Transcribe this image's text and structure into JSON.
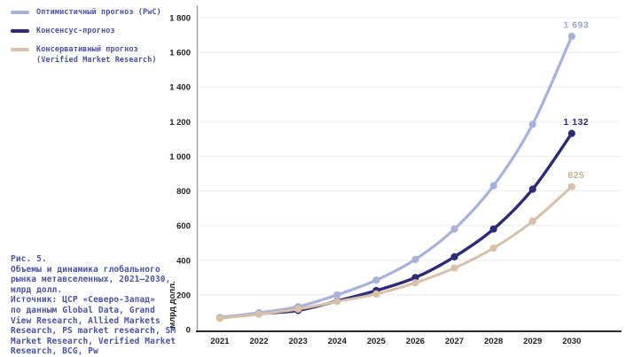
{
  "colors": {
    "text_accent": "#4A53A7",
    "gridline": "#ECECEC",
    "y_axis_line": "#9C9C9C",
    "x_axis_line": "#2B2B2B",
    "tick_label": "#212121"
  },
  "legend": {
    "items": [
      {
        "label": "Оптимистичный прогноз (PwC)"
      },
      {
        "label": "Консенсус-прогноз"
      },
      {
        "label": "Консервативный прогноз\n(Verified Market Research)"
      }
    ]
  },
  "caption": {
    "text": "Рис. 5.\nОбъемы и динамика глобального\nрынка метавселенных, 2021–2030,\nмлрд долл.\nИсточник: ЦСР «Северо-Запад»\nпо данным Global Data, Grand\nView Research, Allied Markets\nResearch, PS market research, SM\nMarket Research, Verified Market\nResearch, BCG, Pw"
  },
  "chart_data": {
    "type": "line",
    "title": "Объемы и динамика глобального рынка метавселенных, 2021–2030, млрд долл.",
    "xlabel": "",
    "ylabel": "млрд долл.",
    "ylim": [
      0,
      1800
    ],
    "grid": "horizontal",
    "legend_position": "top-left",
    "categories": [
      "2021",
      "2022",
      "2023",
      "2024",
      "2025",
      "2026",
      "2027",
      "2028",
      "2029",
      "2030"
    ],
    "y_ticks": [
      0,
      200,
      400,
      600,
      800,
      1000,
      1200,
      1400,
      1600,
      1800
    ],
    "y_tick_labels": [
      "0",
      "200",
      "400",
      "600",
      "800",
      "1 000",
      "1 200",
      "1 400",
      "1 600",
      "1 800"
    ],
    "draw_order": [
      1,
      0,
      2
    ],
    "series": [
      {
        "id": "optimistic",
        "name": "Оптимистичный прогноз (PwC)",
        "color": "#A6B1DC",
        "label_color": "#9CA7D4",
        "line_width": 3.2,
        "values": [
          70,
          97,
          132,
          200,
          285,
          405,
          580,
          830,
          1185,
          1693
        ],
        "end_label": "1 693"
      },
      {
        "id": "consensus",
        "name": "Консенсус-прогноз",
        "color": "#2E2979",
        "label_color": "#2E2979",
        "line_width": 3.4,
        "values": [
          67,
          91,
          110,
          165,
          225,
          300,
          420,
          580,
          810,
          1132
        ],
        "end_label": "1 132"
      },
      {
        "id": "conservative",
        "name": "Консервативный прогноз (Verified Market Research)",
        "color": "#DAC0A7",
        "label_color": "#CDB295",
        "line_width": 3.0,
        "values": [
          65,
          88,
          118,
          162,
          205,
          270,
          355,
          470,
          625,
          825
        ],
        "end_label": "825"
      }
    ]
  }
}
